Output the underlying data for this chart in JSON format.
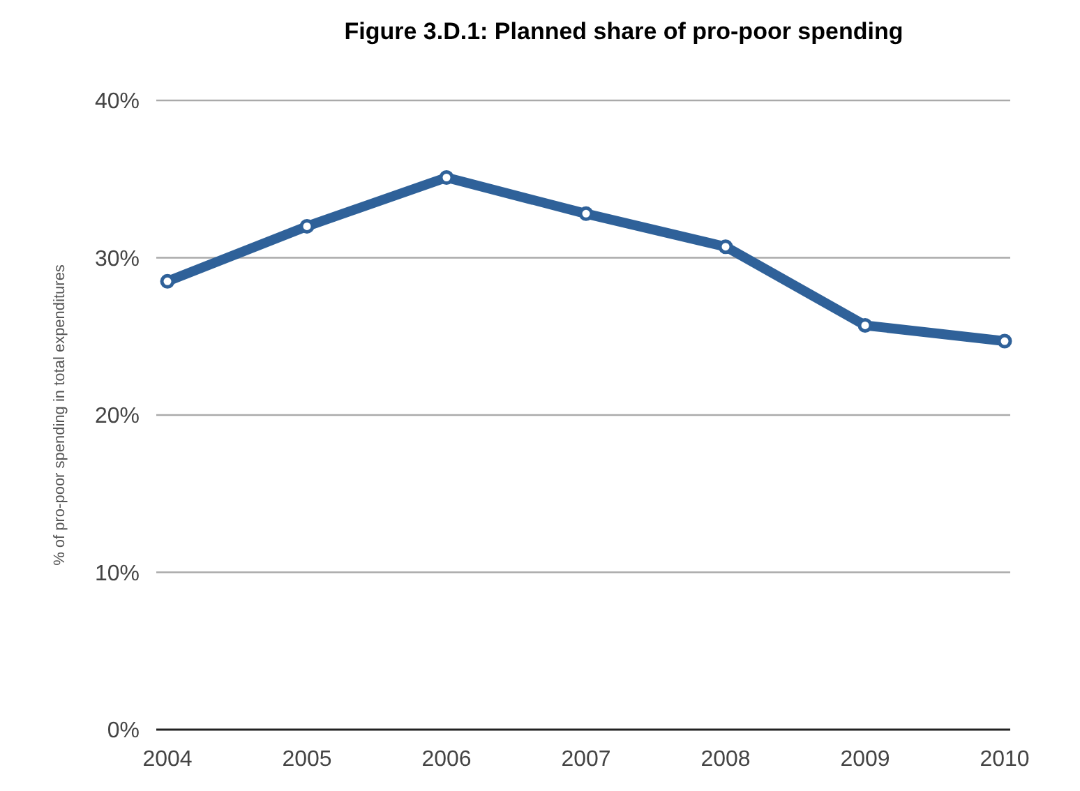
{
  "chart_data": {
    "type": "line",
    "title": "Figure 3.D.1: Planned share of pro-poor spending",
    "ylabel": "% of pro-poor spending in total expenditures",
    "categories": [
      "2004",
      "2005",
      "2006",
      "2007",
      "2008",
      "2009",
      "2010"
    ],
    "series": [
      {
        "color": "#2f6199",
        "values": [
          28.5,
          32.0,
          35.1,
          32.8,
          30.7,
          25.7,
          24.7
        ]
      }
    ],
    "ylim": [
      0,
      40
    ],
    "yticks": [
      {
        "value": 0,
        "label": "0%"
      },
      {
        "value": 10,
        "label": "10%"
      },
      {
        "value": 20,
        "label": "20%"
      },
      {
        "value": 30,
        "label": "30%"
      },
      {
        "value": 40,
        "label": "40%"
      }
    ],
    "grid": "y",
    "marker": "circle",
    "line_style": "solid"
  }
}
